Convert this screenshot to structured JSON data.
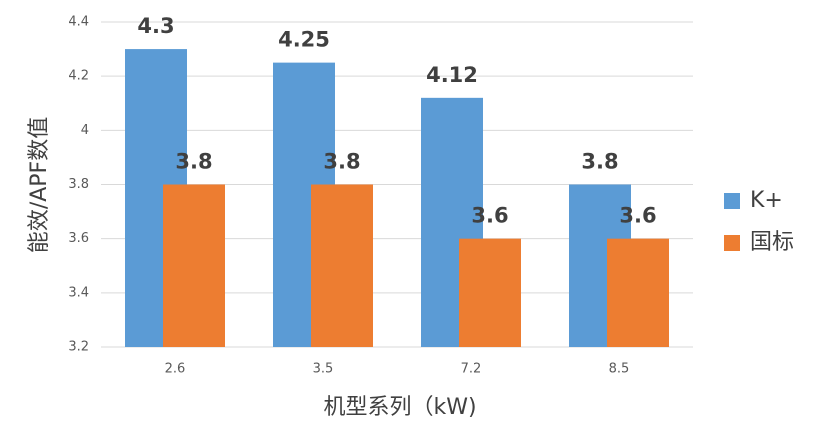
{
  "chart_data": {
    "type": "bar",
    "categories": [
      "2.6",
      "3.5",
      "7.2",
      "8.5"
    ],
    "series": [
      {
        "name": "K+",
        "color": "#5b9bd5",
        "values": [
          4.3,
          4.25,
          4.12,
          3.8
        ]
      },
      {
        "name": "国标",
        "color": "#ed7d31",
        "values": [
          3.8,
          3.8,
          3.6,
          3.6
        ]
      }
    ],
    "ylim": [
      3.2,
      4.4
    ],
    "yticks": [
      3.2,
      3.4,
      3.6,
      3.8,
      4,
      4.2,
      4.4
    ],
    "y_label": "能效/APF数值",
    "x_label": "机型系列（kW)",
    "grid": true,
    "legend": "right"
  }
}
